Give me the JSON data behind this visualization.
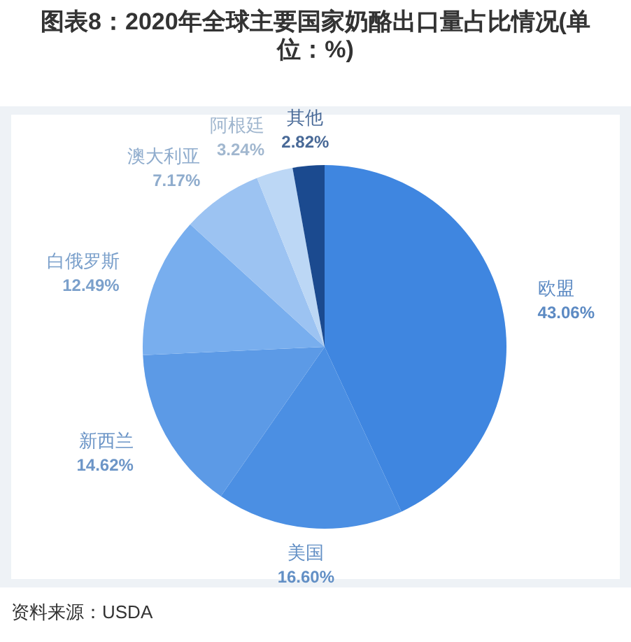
{
  "chart_data": {
    "type": "pie",
    "title": "图表8：2020年全球主要国家奶酪出口量占比情况(单位：%)",
    "categories": [
      "欧盟",
      "美国",
      "新西兰",
      "白俄罗斯",
      "澳大利亚",
      "阿根廷",
      "其他"
    ],
    "values": [
      43.06,
      16.6,
      14.62,
      12.49,
      7.17,
      3.24,
      2.82
    ],
    "colors": [
      "#3f86e0",
      "#4b8fe3",
      "#5c9ae6",
      "#78aeee",
      "#9cc3f2",
      "#bcd7f5",
      "#1b4a8f"
    ],
    "value_labels": [
      "43.06%",
      "16.60%",
      "14.62%",
      "12.49%",
      "7.17%",
      "3.24%",
      "2.82%"
    ],
    "annotations": [
      "资料来源：USDA"
    ]
  }
}
